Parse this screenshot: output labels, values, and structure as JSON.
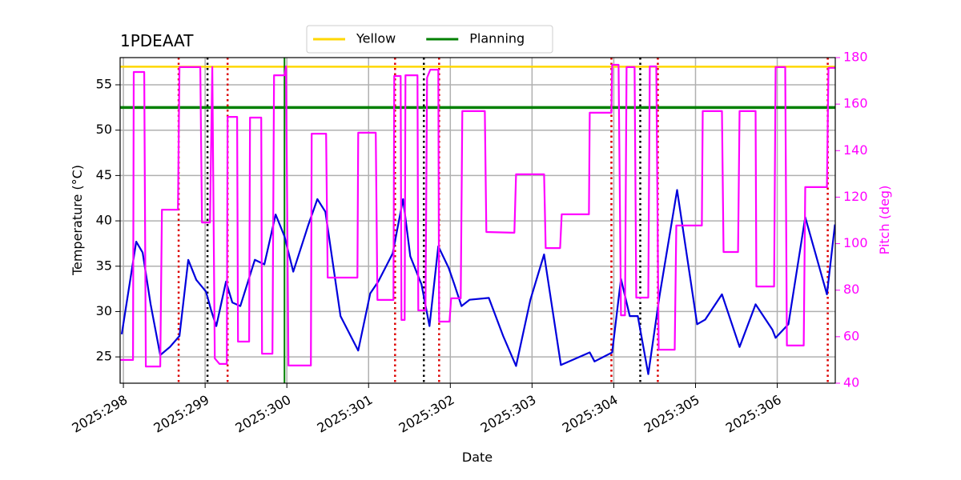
{
  "chart_data": {
    "type": "line",
    "title": "1PDEAAT",
    "xlabel": "Date",
    "ylabel": "Temperature (°C)",
    "y2label": "Pitch (deg)",
    "y2color": "#ff00ff",
    "grid": true,
    "xlim": [
      297.96,
      306.71
    ],
    "xticks": [
      {
        "value": 298,
        "label": "2025:298"
      },
      {
        "value": 299,
        "label": "2025:299"
      },
      {
        "value": 300,
        "label": "2025:300"
      },
      {
        "value": 301,
        "label": "2025:301"
      },
      {
        "value": 302,
        "label": "2025:302"
      },
      {
        "value": 303,
        "label": "2025:303"
      },
      {
        "value": 304,
        "label": "2025:304"
      },
      {
        "value": 305,
        "label": "2025:305"
      },
      {
        "value": 306,
        "label": "2025:306"
      }
    ],
    "ylim": [
      22.1,
      58.0
    ],
    "yticks": [
      25,
      30,
      35,
      40,
      45,
      50,
      55
    ],
    "y2lim": [
      40,
      180
    ],
    "y2ticks": [
      40,
      60,
      80,
      100,
      120,
      140,
      160,
      180
    ],
    "reference_lines": [
      {
        "name": "Yellow",
        "color": "#ffd700",
        "value": 57
      },
      {
        "name": "Planning",
        "color": "#008000",
        "value": 52.5
      }
    ],
    "vertical_lines": [
      {
        "color": "#dd0000",
        "style": "dotted",
        "x": [
          298.676,
          299.275,
          301.324,
          301.863,
          303.971,
          304.539,
          306.618
        ]
      },
      {
        "color": "#000000",
        "style": "dotted",
        "x": [
          299.029,
          301.676,
          304.324
        ]
      },
      {
        "color": "#008000",
        "style": "solid",
        "x": [
          299.971
        ]
      }
    ],
    "series": [
      {
        "color": "#0000dd",
        "axis": "y",
        "x": [
          297.98,
          298.157,
          298.235,
          298.333,
          298.451,
          298.569,
          298.686,
          298.794,
          298.892,
          299.01,
          299.078,
          299.137,
          299.255,
          299.333,
          299.431,
          299.608,
          299.725,
          299.863,
          299.971,
          300.078,
          300.265,
          300.373,
          300.471,
          300.657,
          300.873,
          301.02,
          301.118,
          301.294,
          301.422,
          301.51,
          301.647,
          301.745,
          301.853,
          301.98,
          302.049,
          302.137,
          302.235,
          302.471,
          302.647,
          302.804,
          302.98,
          303.147,
          303.353,
          303.706,
          303.765,
          303.98,
          304.088,
          304.196,
          304.294,
          304.422,
          304.559,
          304.775,
          305.02,
          305.118,
          305.324,
          305.539,
          305.735,
          305.941,
          305.98,
          306.137,
          306.343,
          306.608,
          306.706
        ],
        "values": [
          27.5,
          37.7,
          36.5,
          30.8,
          25.2,
          26.1,
          27.3,
          35.7,
          33.5,
          32.2,
          30,
          28.4,
          33.3,
          31,
          30.6,
          35.7,
          35.2,
          40.7,
          38.3,
          34.4,
          39.6,
          42.4,
          41,
          29.5,
          25.7,
          32,
          33.3,
          36.4,
          42.4,
          36.1,
          33,
          28.4,
          37.2,
          34.8,
          33,
          30.6,
          31.3,
          31.5,
          27.3,
          24,
          31.3,
          36.3,
          24.1,
          25.5,
          24.5,
          25.5,
          33.6,
          29.5,
          29.5,
          23.1,
          31.7,
          43.4,
          28.6,
          29.1,
          31.9,
          26.1,
          30.8,
          28,
          27.1,
          28.6,
          40.4,
          31.9,
          39.6
        ]
      },
      {
        "color": "#ff00ff",
        "axis": "y2",
        "x": [
          297.961,
          298.118,
          298.127,
          298.255,
          298.275,
          298.451,
          298.471,
          298.667,
          298.686,
          298.941,
          298.961,
          299.059,
          299.088,
          299.118,
          299.176,
          299.265,
          299.275,
          299.392,
          299.402,
          299.539,
          299.549,
          299.686,
          299.696,
          299.824,
          299.843,
          299.971,
          299.99,
          300.02,
          300.294,
          300.304,
          300.48,
          300.5,
          300.863,
          300.873,
          301.088,
          301.108,
          301.304,
          301.314,
          301.392,
          301.402,
          301.441,
          301.451,
          301.598,
          301.608,
          301.696,
          301.716,
          301.755,
          301.853,
          301.863,
          301.99,
          302.01,
          302.127,
          302.147,
          302.422,
          302.441,
          302.784,
          302.804,
          303.147,
          303.167,
          303.343,
          303.363,
          303.696,
          303.706,
          303.971,
          303.98,
          304.059,
          304.088,
          304.137,
          304.157,
          304.255,
          304.275,
          304.422,
          304.441,
          304.52,
          304.549,
          304.745,
          304.765,
          305.078,
          305.088,
          305.324,
          305.343,
          305.52,
          305.539,
          305.735,
          305.745,
          305.961,
          305.98,
          306.098,
          306.118,
          306.324,
          306.343,
          306.608,
          306.627,
          306.706
        ],
        "values": [
          50,
          50,
          173.8,
          173.8,
          47.2,
          47.2,
          114.6,
          114.6,
          175.9,
          175.9,
          109.1,
          109.1,
          175.9,
          50.7,
          48.3,
          48.3,
          154.5,
          154.5,
          57.9,
          57.9,
          154.2,
          154.2,
          52.7,
          52.7,
          172.4,
          172.4,
          176.2,
          47.6,
          47.6,
          147.3,
          147.3,
          85.4,
          85.4,
          147.7,
          147.7,
          75.8,
          75.8,
          172.1,
          172.1,
          67.2,
          67.2,
          172.4,
          172.4,
          71.3,
          71.3,
          171.4,
          174.8,
          174.8,
          66.5,
          66.5,
          76.5,
          76.5,
          157,
          157,
          105,
          104.7,
          129.8,
          129.8,
          98.1,
          98.1,
          112.6,
          112.6,
          156.3,
          156.3,
          176.9,
          176.9,
          69.2,
          69.2,
          175.9,
          175.9,
          76.8,
          76.8,
          176.2,
          176.2,
          54.4,
          54.4,
          107.8,
          107.8,
          157,
          157,
          96.4,
          96.4,
          157,
          157,
          81.6,
          81.6,
          175.9,
          175.9,
          56.2,
          56.2,
          124.3,
          124.3,
          175.6,
          175.6
        ]
      }
    ]
  }
}
